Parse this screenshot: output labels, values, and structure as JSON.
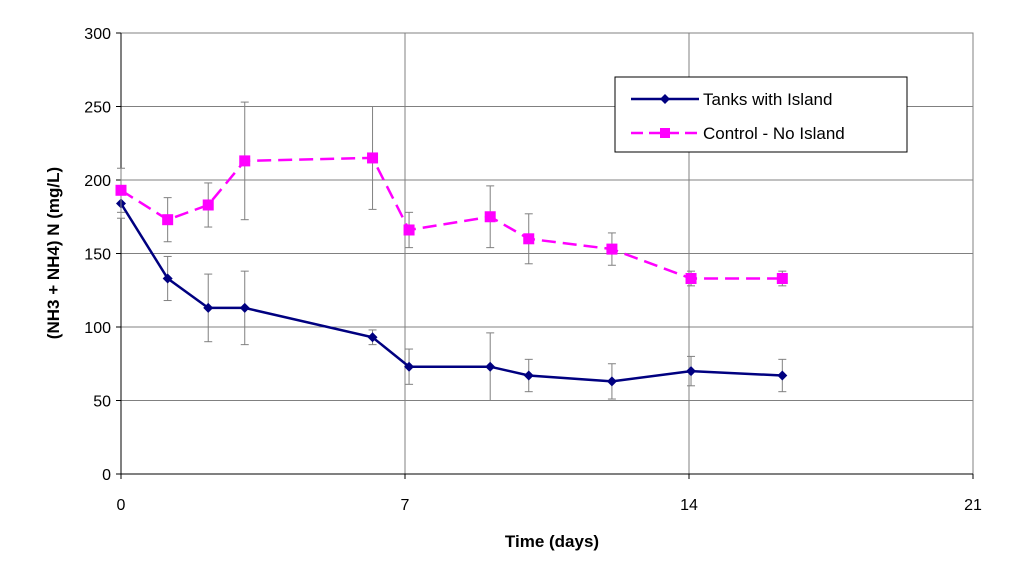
{
  "chart_data": {
    "type": "line",
    "xlabel": "Time (days)",
    "ylabel": "(NH3 + NH4)  N (mg/L)",
    "xlim": [
      0,
      21
    ],
    "ylim": [
      0,
      300
    ],
    "xticks": [
      0,
      7,
      14,
      21
    ],
    "yticks": [
      0,
      50,
      100,
      150,
      200,
      250,
      300
    ],
    "grid": true,
    "legend_position": "top-right",
    "series": [
      {
        "name": "Tanks with Island",
        "color": "#000080",
        "marker": "diamond",
        "line_style": "solid",
        "x": [
          0,
          1.15,
          2.15,
          3.05,
          6.2,
          7.1,
          9.1,
          10.05,
          12.1,
          14.05,
          16.3
        ],
        "y": [
          184,
          133,
          113,
          113,
          93,
          73,
          73,
          67,
          63,
          70,
          67
        ],
        "error": [
          10,
          15,
          23,
          25,
          5,
          12,
          23,
          11,
          12,
          10,
          11
        ]
      },
      {
        "name": "Control - No Island",
        "color": "#FF00FF",
        "marker": "square",
        "line_style": "dashed",
        "x": [
          0,
          1.15,
          2.15,
          3.05,
          6.2,
          7.1,
          9.1,
          10.05,
          12.1,
          14.05,
          16.3
        ],
        "y": [
          193,
          173,
          183,
          213,
          215,
          166,
          175,
          160,
          153,
          133,
          133
        ],
        "error": [
          15,
          15,
          15,
          40,
          35,
          12,
          21,
          17,
          11,
          5,
          5
        ]
      }
    ]
  }
}
